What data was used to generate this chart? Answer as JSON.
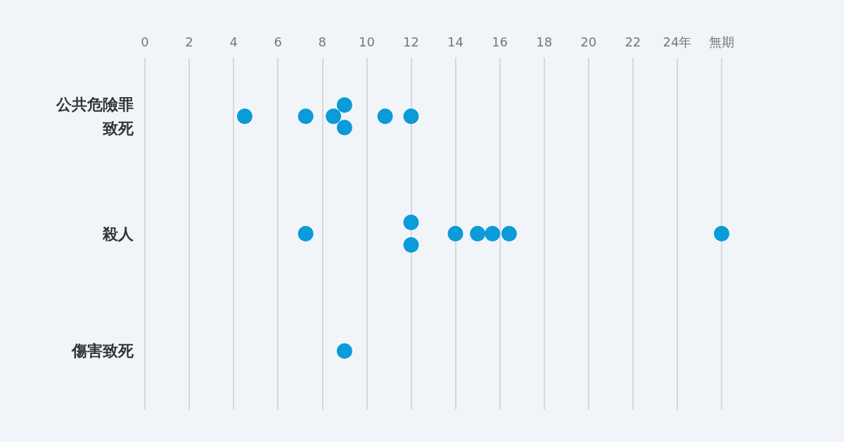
{
  "chart_data": {
    "type": "scatter",
    "orientation": "horizontal",
    "categories": [
      "公共危險罪致死",
      "殺人",
      "傷害致死"
    ],
    "series": [
      {
        "color": "#0a9bd8",
        "x": [
          "公共危險罪致死",
          "公共危險罪致死",
          "公共危險罪致死",
          "公共危險罪致死",
          "公共危險罪致死",
          "公共危險罪致死",
          "公共危險罪致死",
          "殺人",
          "殺人",
          "殺人",
          "殺人",
          "殺人",
          "殺人",
          "殺人",
          "殺人",
          "傷害致死"
        ],
        "values": [
          4.5,
          7.25,
          8.5,
          9,
          9,
          10.83,
          12,
          7.25,
          12,
          12,
          14,
          15,
          15.67,
          16.42,
          26,
          9
        ]
      }
    ],
    "xlim": [
      0,
      26
    ],
    "xticks": [
      0,
      2,
      4,
      6,
      8,
      10,
      12,
      14,
      16,
      18,
      20,
      22,
      {
        "value": 24,
        "label": "24年"
      },
      {
        "value": 26,
        "label": "無期"
      }
    ],
    "grid": "x",
    "marker": "circle"
  }
}
